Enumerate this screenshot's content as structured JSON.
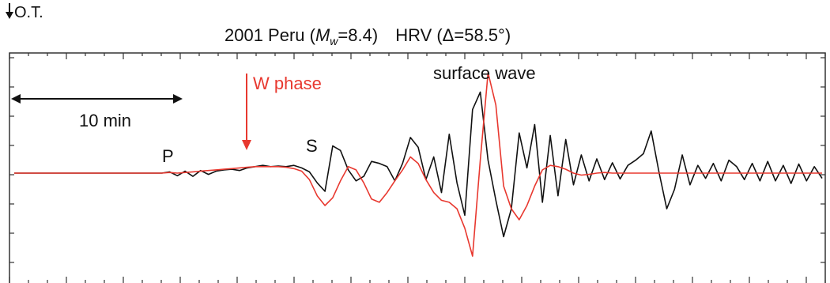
{
  "chart_data": {
    "type": "line",
    "title": {
      "event": "2001 Peru (",
      "mag_symbol": "M",
      "mag_sub": "w",
      "mag_value": "=8.4)",
      "station": "HRV (Δ=58.5°)"
    },
    "xlabel": "",
    "ylabel": "",
    "grid": false,
    "annotations": {
      "origin_time": "O.T.",
      "scale_bar": "10 min",
      "p_label": "P",
      "s_label": "S",
      "w_phase": "W phase",
      "surface_wave": "surface wave"
    },
    "series": [
      {
        "color": "#111111",
        "x": [
          0,
          10,
          20,
          30,
          40,
          50,
          60,
          70,
          80,
          90,
          100,
          110,
          120,
          130,
          140,
          150,
          160,
          170,
          180,
          190,
          200,
          210,
          220,
          230,
          240,
          250,
          260,
          270,
          280,
          290,
          300,
          310,
          320,
          330,
          340,
          350,
          360,
          370,
          380,
          390,
          400,
          410,
          420,
          430,
          440,
          450,
          460,
          470,
          480,
          490,
          500,
          510,
          520,
          530,
          540,
          550,
          560,
          570,
          580,
          590,
          600,
          610,
          620,
          630,
          640,
          650,
          660,
          670,
          680,
          690,
          700,
          710,
          720,
          730,
          740,
          750,
          760,
          770,
          780,
          790,
          800,
          810,
          820,
          830,
          840,
          850,
          860,
          870,
          880,
          890,
          900,
          910,
          920,
          930,
          940,
          950,
          960,
          970,
          980,
          990,
          1000,
          1010,
          1020,
          1030,
          1040
        ],
        "values": [
          0,
          0,
          0,
          0,
          0,
          0,
          0,
          0,
          0,
          0,
          0,
          0,
          0,
          0,
          0,
          0,
          0,
          0,
          0,
          0,
          0.02,
          -0.04,
          0.03,
          -0.05,
          0.04,
          -0.02,
          0.03,
          0.05,
          0.06,
          0.04,
          0.08,
          0.1,
          0.12,
          0.1,
          0.11,
          0.1,
          0.12,
          0.08,
          0.02,
          -0.15,
          -0.28,
          0.42,
          0.35,
          0.05,
          -0.12,
          -0.05,
          0.18,
          0.15,
          0.1,
          -0.12,
          0.15,
          0.55,
          0.4,
          -0.1,
          0.25,
          -0.3,
          0.6,
          -0.15,
          -0.65,
          0.98,
          1.25,
          0.2,
          -0.42,
          -0.98,
          -0.55,
          0.62,
          0.08,
          0.75,
          -0.45,
          0.58,
          -0.35,
          0.52,
          -0.18,
          0.28,
          -0.12,
          0.22,
          -0.1,
          0.16,
          -0.09,
          0.12,
          0.2,
          0.3,
          0.65,
          0.02,
          -0.55,
          -0.25,
          0.28,
          -0.18,
          0.12,
          -0.08,
          0.15,
          -0.12,
          0.2,
          0.1,
          -0.1,
          0.15,
          -0.12,
          0.18,
          -0.12,
          0.12,
          -0.16,
          0.14,
          -0.12,
          0.1,
          -0.08
        ]
      },
      {
        "color": "#e8382f",
        "x": [
          0,
          10,
          20,
          30,
          40,
          50,
          60,
          70,
          80,
          90,
          100,
          110,
          120,
          130,
          140,
          150,
          160,
          170,
          180,
          190,
          200,
          210,
          220,
          230,
          240,
          250,
          260,
          270,
          280,
          290,
          300,
          310,
          320,
          330,
          340,
          350,
          360,
          370,
          380,
          390,
          400,
          410,
          420,
          430,
          440,
          450,
          460,
          470,
          480,
          490,
          500,
          510,
          520,
          530,
          540,
          550,
          560,
          570,
          580,
          590,
          600,
          610,
          620,
          630,
          640,
          650,
          660,
          670,
          680,
          690,
          700,
          710,
          720,
          730,
          740,
          750,
          760,
          770,
          780,
          790,
          800,
          810,
          820,
          830,
          840,
          850,
          860,
          870,
          880,
          890,
          900,
          910,
          920,
          930,
          940,
          950,
          960,
          970,
          980,
          990,
          1000,
          1010,
          1020,
          1030,
          1040
        ],
        "values": [
          0,
          0,
          0,
          0,
          0,
          0,
          0,
          0,
          0,
          0,
          0,
          0,
          0,
          0,
          0,
          0,
          0,
          0,
          0,
          0,
          0.01,
          0,
          0.01,
          0.02,
          0.03,
          0.04,
          0.05,
          0.06,
          0.07,
          0.08,
          0.09,
          0.1,
          0.1,
          0.1,
          0.1,
          0.09,
          0.07,
          0.03,
          -0.1,
          -0.35,
          -0.5,
          -0.38,
          -0.12,
          0.1,
          0.05,
          -0.15,
          -0.4,
          -0.45,
          -0.3,
          -0.12,
          0.05,
          0.25,
          0.15,
          -0.1,
          -0.3,
          -0.42,
          -0.45,
          -0.55,
          -0.85,
          -1.28,
          0.2,
          1.55,
          1.05,
          -0.2,
          -0.55,
          -0.72,
          -0.5,
          -0.2,
          0.05,
          0.12,
          0.1,
          0.06,
          0,
          -0.03,
          -0.02,
          0,
          0.01,
          0,
          0,
          0,
          0,
          0,
          0,
          0,
          0,
          0,
          0,
          0,
          0,
          0,
          0,
          0,
          0,
          0,
          0,
          0,
          0,
          0,
          0,
          0,
          0,
          0,
          0,
          0,
          0
        ]
      }
    ],
    "xlim": [
      0,
      1040
    ],
    "ylim": [
      -1.55,
      1.55
    ]
  }
}
